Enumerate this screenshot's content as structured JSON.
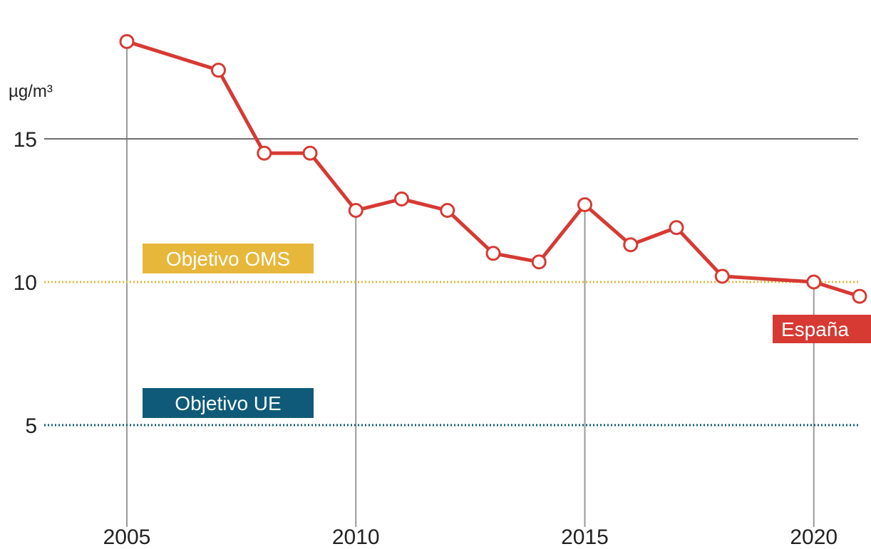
{
  "chart_data": {
    "type": "line",
    "unit_label": "µg/m³",
    "x": [
      2005,
      2007,
      2008,
      2009,
      2010,
      2011,
      2012,
      2013,
      2014,
      2015,
      2016,
      2017,
      2018,
      2020,
      2021
    ],
    "series": [
      {
        "name": "España",
        "values": [
          18.4,
          17.4,
          14.5,
          14.5,
          12.5,
          12.9,
          12.5,
          11.0,
          10.7,
          12.7,
          11.3,
          11.9,
          10.2,
          10.0,
          9.5
        ],
        "color": "#d63a33"
      }
    ],
    "y_ticks": [
      5,
      10,
      15
    ],
    "x_ticks": [
      2005,
      2010,
      2015,
      2020
    ],
    "xlim": [
      2005,
      2021
    ],
    "ylim": [
      0,
      19
    ],
    "reference_lines": [
      {
        "label": "Objetivo OMS",
        "value": 10,
        "color": "#e6b73b"
      },
      {
        "label": "Objetivo UE",
        "value": 5,
        "color": "#0f5a78"
      }
    ],
    "highlight_years": [
      2005,
      2010,
      2015,
      2020
    ],
    "grid_line_value": 15
  }
}
